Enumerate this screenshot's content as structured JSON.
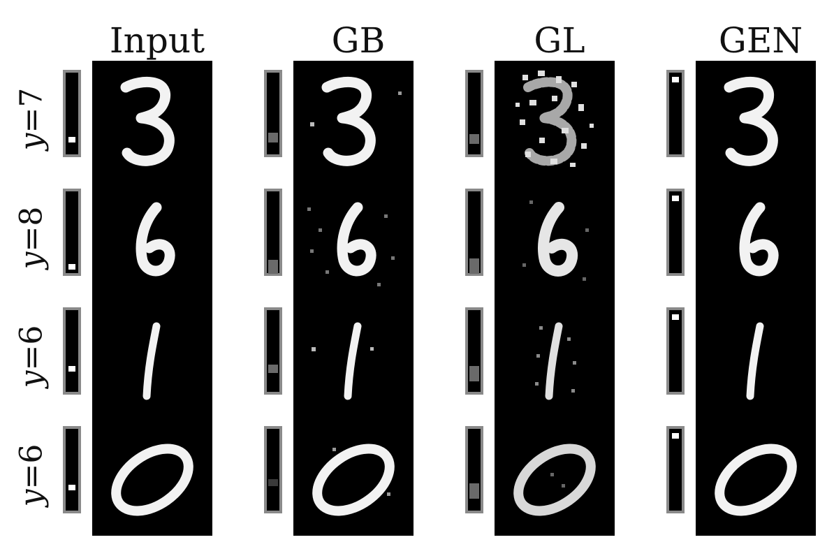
{
  "columns": {
    "input": "Input",
    "gb": "GB",
    "gl": "GL",
    "gen": "GEN"
  },
  "rows": [
    {
      "var": "y",
      "eq": " = ",
      "value": "7",
      "digit": "3"
    },
    {
      "var": "y",
      "eq": " = ",
      "value": "8",
      "digit": "6"
    },
    {
      "var": "y",
      "eq": " = ",
      "value": "6",
      "digit": "1"
    },
    {
      "var": "y",
      "eq": " = ",
      "value": "6",
      "digit": "0"
    }
  ],
  "colors": {
    "background": "#ffffff",
    "panel": "#000000",
    "bar_border": "#8a8a8a",
    "stroke": "#f2f2f2"
  }
}
